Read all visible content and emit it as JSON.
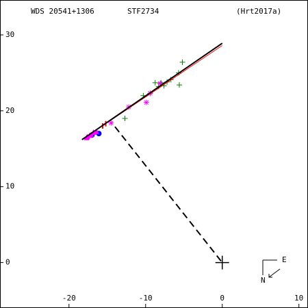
{
  "chart_data": {
    "type": "scatter",
    "title": "WDS 20541+1306",
    "subtitle": "STF2734",
    "reference": "(Hrt2017a)",
    "compass": {
      "east": "E",
      "north": "N"
    },
    "xlim": [
      -29,
      11.1
    ],
    "ylim": [
      -5.9,
      34.6
    ],
    "xticks": [
      -20,
      -10,
      0,
      10
    ],
    "yticks": [
      0,
      10,
      20,
      30
    ],
    "series": [
      {
        "marker": "plus",
        "color": "#008000",
        "x": [
          -5.2,
          -5.7,
          -5.6,
          -7.2,
          -8.0,
          -8.75,
          -10.3,
          -12.7,
          -7.6,
          -6.7,
          -9.4,
          -8.3
        ],
        "y": [
          26.4,
          25.0,
          23.4,
          23.8,
          23.7,
          23.7,
          22.0,
          19.0,
          23.3,
          24.1,
          22.3,
          23.2
        ]
      },
      {
        "marker": "asterisk",
        "color": "#ff00ff",
        "x": [
          -12.2,
          -9.9,
          -8.1,
          -14.5,
          -9.4
        ],
        "y": [
          20.5,
          21.1,
          23.6,
          18.4,
          22.3
        ]
      },
      {
        "marker": "circle",
        "color": "#0000ff",
        "x": [
          -16.1,
          -17.0
        ],
        "y": [
          17.0,
          16.8
        ]
      },
      {
        "marker": "tick",
        "color": "#ff0000",
        "x": [
          -15.6,
          -15.2
        ],
        "y": [
          18.0,
          18.3
        ]
      },
      {
        "marker": "triangle",
        "color": "#ff00ff",
        "x": [
          -17.6,
          -17.1,
          -16.8,
          -16.4,
          -17.7,
          -17.3
        ],
        "y": [
          16.5,
          16.8,
          17.1,
          17.2,
          16.4,
          16.7
        ]
      },
      {
        "marker": "line",
        "color": "#ff0000",
        "x": [
          -18.3,
          0
        ],
        "y": [
          16.2,
          28.6
        ]
      },
      {
        "marker": "line",
        "color": "#000000",
        "x": [
          -18.3,
          0
        ],
        "y": [
          16.2,
          28.9
        ]
      },
      {
        "marker": "dashed",
        "color": "#000000",
        "x": [
          -14,
          0
        ],
        "y": [
          17.9,
          0
        ]
      },
      {
        "marker": "cross",
        "color": "#000000",
        "x": [
          0
        ],
        "y": [
          0
        ]
      }
    ]
  }
}
